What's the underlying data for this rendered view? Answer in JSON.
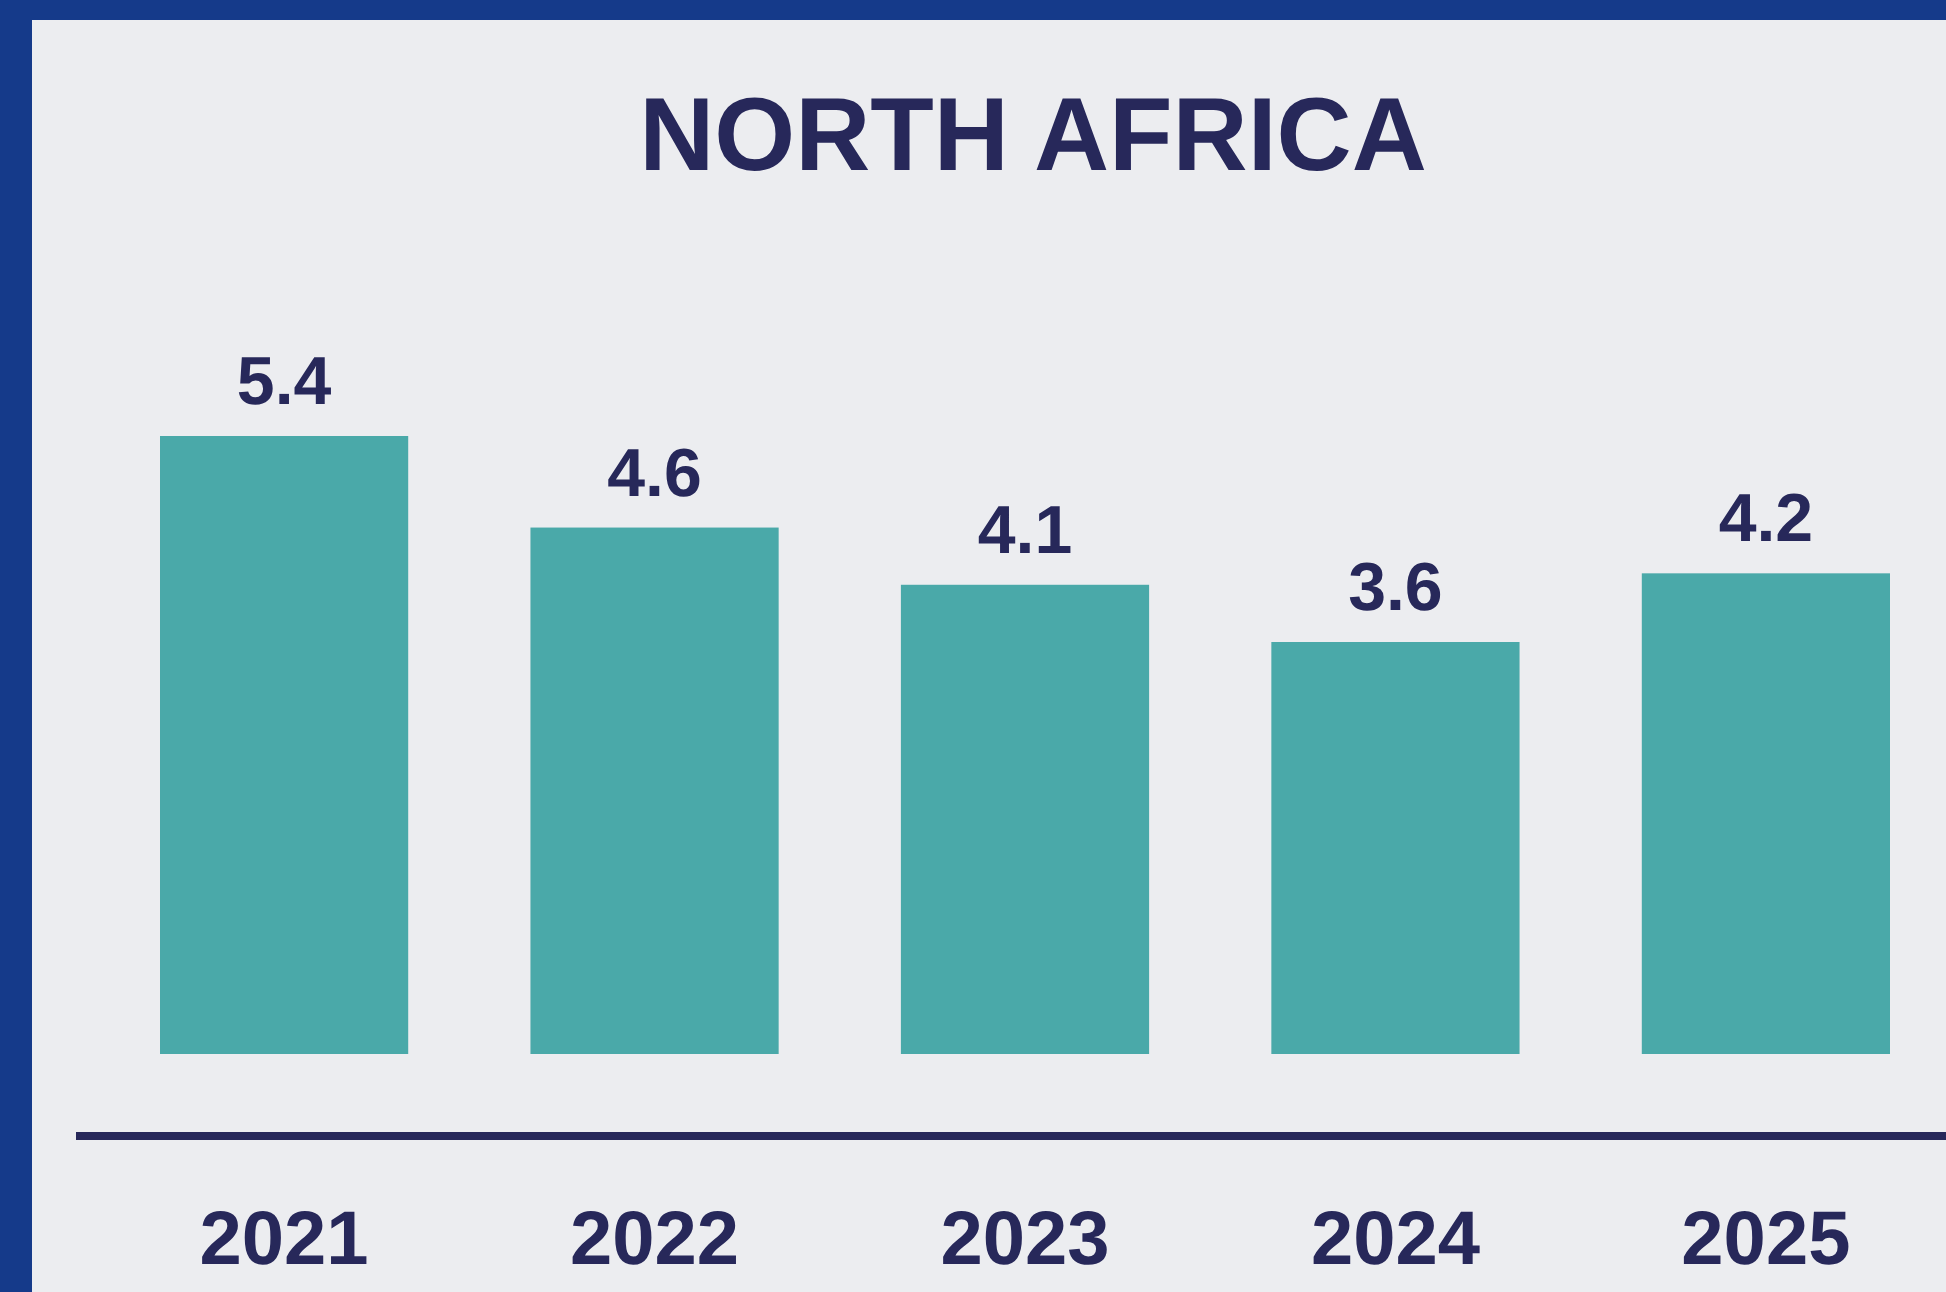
{
  "chart_data": {
    "type": "bar",
    "title": "NORTH AFRICA",
    "categories": [
      "2021",
      "2022",
      "2023",
      "2024",
      "2025"
    ],
    "values": [
      5.4,
      4.6,
      4.1,
      3.6,
      4.2
    ],
    "color": "#4aa9a9",
    "data_labels": true
  }
}
